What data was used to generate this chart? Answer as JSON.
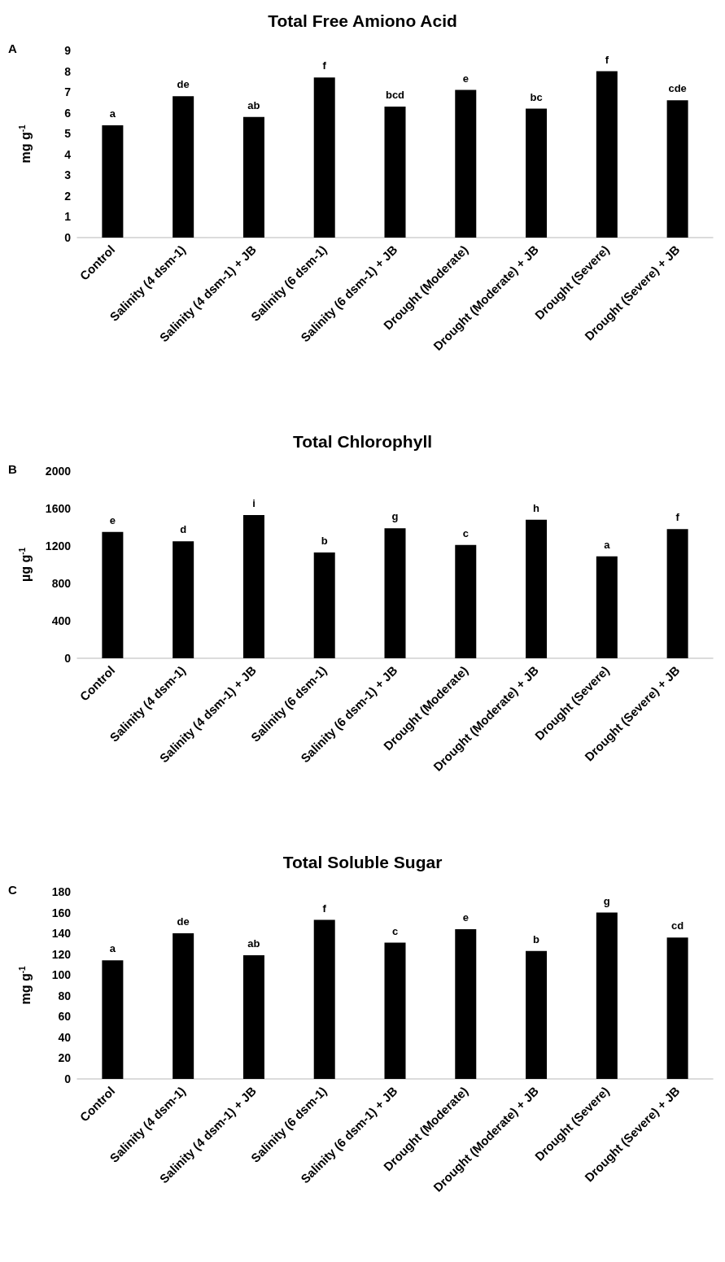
{
  "chart_data": [
    {
      "type": "bar",
      "title": "Total Free Amiono Acid",
      "ylabel": "mg g$^{-1}$",
      "annotations": [
        "A"
      ],
      "color": "#000000",
      "categories": [
        "Control",
        "Salinity (4 dsm-1)",
        "Salinity (4 dsm-1) + JB",
        "Salinity (6 dsm-1)",
        "Salinity (6 dsm-1) + JB",
        "Drought (Moderate)",
        "Drought (Moderate) + JB",
        "Drought (Severe)",
        "Drought (Severe) + JB"
      ],
      "values": [
        5.4,
        6.8,
        5.8,
        7.7,
        6.3,
        7.1,
        6.2,
        8.0,
        6.6
      ],
      "value_labels": [
        "a",
        "de",
        "ab",
        "f",
        "bcd",
        "e",
        "bc",
        "f",
        "cde"
      ],
      "ylim": [
        0,
        9
      ],
      "yticks": [
        0,
        1,
        2,
        3,
        4,
        5,
        6,
        7,
        8,
        9
      ]
    },
    {
      "type": "bar",
      "title": "Total Chlorophyll",
      "ylabel": "µg g$^{-1}$",
      "annotations": [
        "B"
      ],
      "color": "#000000",
      "categories": [
        "Control",
        "Salinity (4 dsm-1)",
        "Salinity (4 dsm-1) + JB",
        "Salinity (6 dsm-1)",
        "Salinity (6 dsm-1) + JB",
        "Drought (Moderate)",
        "Drought (Moderate) + JB",
        "Drought (Severe)",
        "Drought (Severe) + JB"
      ],
      "values": [
        1350,
        1250,
        1530,
        1130,
        1390,
        1210,
        1480,
        1090,
        1380
      ],
      "value_labels": [
        "e",
        "d",
        "i",
        "b",
        "g",
        "c",
        "h",
        "a",
        "f"
      ],
      "ylim": [
        0,
        2000
      ],
      "yticks": [
        0,
        400,
        800,
        1200,
        1600,
        2000
      ]
    },
    {
      "type": "bar",
      "title": "Total Soluble Sugar",
      "ylabel": "mg g$^{-1}$",
      "annotations": [
        "C"
      ],
      "color": "#000000",
      "categories": [
        "Control",
        "Salinity (4 dsm-1)",
        "Salinity (4 dsm-1) + JB",
        "Salinity (6 dsm-1)",
        "Salinity (6 dsm-1) + JB",
        "Drought (Moderate)",
        "Drought (Moderate) + JB",
        "Drought (Severe)",
        "Drought (Severe) + JB"
      ],
      "values": [
        114,
        140,
        119,
        153,
        131,
        144,
        123,
        160,
        136
      ],
      "value_labels": [
        "a",
        "de",
        "ab",
        "f",
        "c",
        "e",
        "b",
        "g",
        "cd"
      ],
      "ylim": [
        0,
        180
      ],
      "yticks": [
        0,
        20,
        40,
        60,
        80,
        100,
        120,
        140,
        160,
        180
      ]
    }
  ]
}
